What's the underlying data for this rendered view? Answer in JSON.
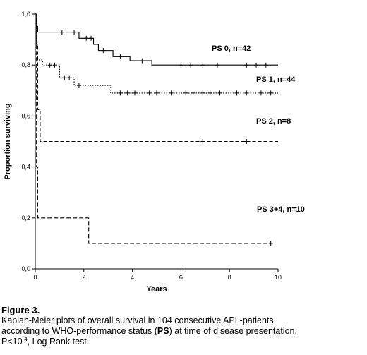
{
  "chart_data": {
    "type": "line",
    "subtype": "kaplan-meier-step",
    "xlabel": "Years",
    "ylabel": "Proportion surviving",
    "xlim": [
      0,
      10
    ],
    "ylim": [
      0,
      1
    ],
    "x_ticks": [
      "0",
      "2",
      "4",
      "6",
      "8",
      "10"
    ],
    "y_ticks": [
      "0,0",
      "0,2",
      "0,4",
      "0,6",
      "0,8",
      "1,0"
    ],
    "grid": false,
    "series": [
      {
        "name": "PS 0, n=42",
        "line_style": "solid",
        "steps": [
          [
            0,
            1.0
          ],
          [
            0.05,
            0.952
          ],
          [
            0.1,
            0.929
          ],
          [
            1.8,
            0.905
          ],
          [
            2.4,
            0.881
          ],
          [
            2.6,
            0.857
          ],
          [
            3.2,
            0.833
          ],
          [
            3.9,
            0.817
          ],
          [
            4.8,
            0.8
          ],
          [
            10,
            0.8
          ]
        ],
        "censored": [
          [
            1.1,
            0.929
          ],
          [
            1.6,
            0.929
          ],
          [
            2.1,
            0.905
          ],
          [
            2.3,
            0.905
          ],
          [
            2.8,
            0.857
          ],
          [
            3.5,
            0.833
          ],
          [
            4.4,
            0.817
          ],
          [
            6.0,
            0.8
          ],
          [
            6.4,
            0.8
          ],
          [
            6.9,
            0.8
          ],
          [
            7.5,
            0.8
          ],
          [
            8.7,
            0.8
          ],
          [
            9.1,
            0.8
          ],
          [
            9.5,
            0.8
          ]
        ]
      },
      {
        "name": "PS 1, n=44",
        "line_style": "dotted",
        "steps": [
          [
            0,
            1.0
          ],
          [
            0.05,
            0.886
          ],
          [
            0.1,
            0.82
          ],
          [
            0.3,
            0.8
          ],
          [
            1.0,
            0.75
          ],
          [
            1.6,
            0.72
          ],
          [
            3.1,
            0.69
          ],
          [
            10,
            0.69
          ]
        ],
        "censored": [
          [
            0.6,
            0.8
          ],
          [
            0.8,
            0.8
          ],
          [
            1.2,
            0.75
          ],
          [
            1.4,
            0.75
          ],
          [
            1.8,
            0.72
          ],
          [
            3.5,
            0.69
          ],
          [
            3.8,
            0.69
          ],
          [
            4.1,
            0.69
          ],
          [
            4.7,
            0.69
          ],
          [
            5.0,
            0.69
          ],
          [
            5.6,
            0.69
          ],
          [
            6.2,
            0.69
          ],
          [
            6.5,
            0.69
          ],
          [
            6.9,
            0.69
          ],
          [
            7.2,
            0.69
          ],
          [
            7.6,
            0.69
          ],
          [
            8.3,
            0.69
          ],
          [
            8.7,
            0.69
          ],
          [
            9.3,
            0.69
          ],
          [
            9.7,
            0.69
          ]
        ]
      },
      {
        "name": "PS 2, n=8",
        "line_style": "dashed",
        "steps": [
          [
            0,
            1.0
          ],
          [
            0.05,
            0.875
          ],
          [
            0.1,
            0.625
          ],
          [
            0.2,
            0.5
          ],
          [
            10,
            0.5
          ]
        ],
        "censored": [
          [
            6.9,
            0.5
          ],
          [
            8.7,
            0.5
          ]
        ]
      },
      {
        "name": "PS 3+4, n=10",
        "line_style": "long-dashed",
        "steps": [
          [
            0,
            1.0
          ],
          [
            0.05,
            0.4
          ],
          [
            0.1,
            0.2
          ],
          [
            2.2,
            0.1
          ],
          [
            9.7,
            0.1
          ]
        ],
        "censored": [
          [
            9.7,
            0.1
          ]
        ]
      }
    ]
  },
  "caption": {
    "title": "Figure 3.",
    "line1": "Kaplan-Meier plots of overall survival in 104 consecutive APL-patients",
    "line2_prefix": "according to WHO-performance status (",
    "line2_bold": "PS",
    "line2_suffix": ") at time of disease presentation.",
    "line3_prefix": "P<10",
    "line3_sup": "-4",
    "line3_suffix": ", Log Rank test."
  },
  "colors": {
    "line": "#000000",
    "background": "#ffffff"
  }
}
